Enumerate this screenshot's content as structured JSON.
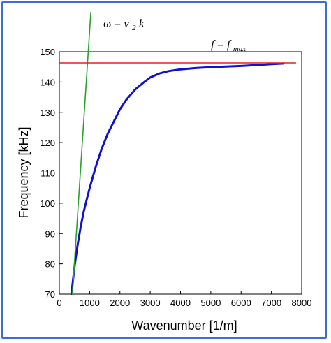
{
  "chart_data": {
    "type": "line",
    "xlabel": "Wavenumber [1/m]",
    "ylabel": "Frequency [kHz]",
    "xlim": [
      0,
      8000
    ],
    "ylim": [
      70,
      150
    ],
    "xticks": [
      0,
      1000,
      2000,
      3000,
      4000,
      5000,
      6000,
      7000,
      8000
    ],
    "yticks": [
      70,
      80,
      90,
      100,
      110,
      120,
      130,
      140,
      150
    ],
    "grid": false,
    "series": [
      {
        "color": "#1010d0",
        "x": [
          400,
          500,
          600,
          700,
          800,
          900,
          1000,
          1100,
          1200,
          1400,
          1600,
          1800,
          2000,
          2200,
          2500,
          2800,
          3000,
          3300,
          3600,
          4000,
          4500,
          5000,
          5500,
          6000,
          6500,
          7000,
          7400
        ],
        "y": [
          70,
          79,
          86,
          92,
          97,
          101,
          105,
          108.5,
          112,
          118,
          123,
          127,
          131,
          134,
          137.5,
          140,
          141.5,
          142.8,
          143.6,
          144.2,
          144.6,
          144.9,
          145.1,
          145.3,
          145.6,
          145.9,
          146.1
        ]
      },
      {
        "color": "#2ca02c",
        "x": [
          430,
          1040
        ],
        "y": [
          70,
          163
        ]
      },
      {
        "color": "#e02020",
        "x": [
          0,
          7800
        ],
        "y": [
          146.3,
          146.3
        ]
      }
    ]
  },
  "annotations": {
    "omega_label": {
      "symbol": "ω",
      "equals": " = ",
      "v": "v",
      "sub": "2",
      "k": "k"
    },
    "fmax_label": {
      "f": "f",
      "equals": " = ",
      "f2": "f",
      "sub": "max"
    }
  }
}
